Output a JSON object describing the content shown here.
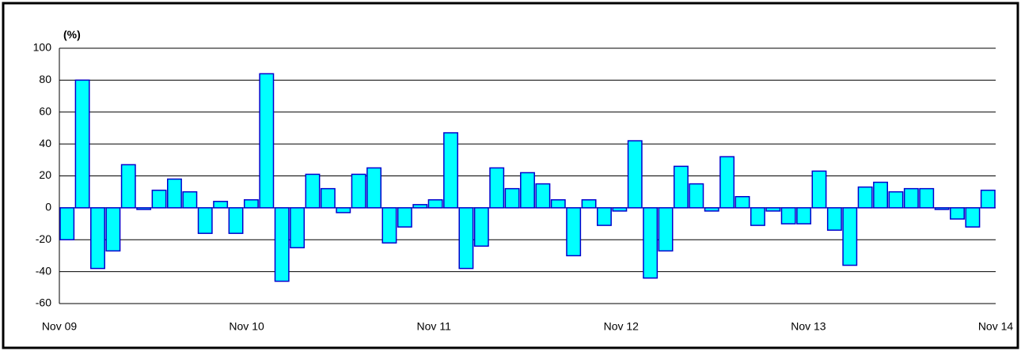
{
  "chart_data": {
    "type": "bar",
    "y_label": "(%)",
    "categories": [
      "Nov 09",
      null,
      null,
      null,
      null,
      null,
      null,
      null,
      null,
      null,
      null,
      null,
      "Nov 10",
      null,
      null,
      null,
      null,
      null,
      null,
      null,
      null,
      null,
      null,
      null,
      "Nov 11",
      null,
      null,
      null,
      null,
      null,
      null,
      null,
      null,
      null,
      null,
      null,
      "Nov 12",
      null,
      null,
      null,
      null,
      null,
      null,
      null,
      null,
      null,
      null,
      null,
      "Nov 13",
      null,
      null,
      null,
      null,
      null,
      null,
      null,
      null,
      null,
      null,
      null,
      "Nov 14"
    ],
    "values": [
      -20,
      80,
      -38,
      -27,
      27,
      -1,
      11,
      18,
      10,
      -16,
      4,
      -16,
      5,
      84,
      -46,
      -25,
      21,
      12,
      -3,
      21,
      25,
      -22,
      -12,
      2,
      5,
      47,
      -38,
      -24,
      25,
      12,
      22,
      15,
      5,
      -30,
      5,
      -11,
      -2,
      42,
      -44,
      -27,
      26,
      15,
      -2,
      32,
      7,
      -11,
      -2,
      -10,
      -10,
      23,
      -14,
      -36,
      13,
      16,
      10,
      12,
      12,
      -1,
      -7,
      -12,
      11
    ],
    "color": "#00ffff",
    "edge_color": "#0000cc",
    "ylim": [
      -60,
      100
    ],
    "yticks": [
      -60,
      -40,
      -20,
      0,
      20,
      40,
      60,
      80,
      100
    ],
    "grid": true
  }
}
